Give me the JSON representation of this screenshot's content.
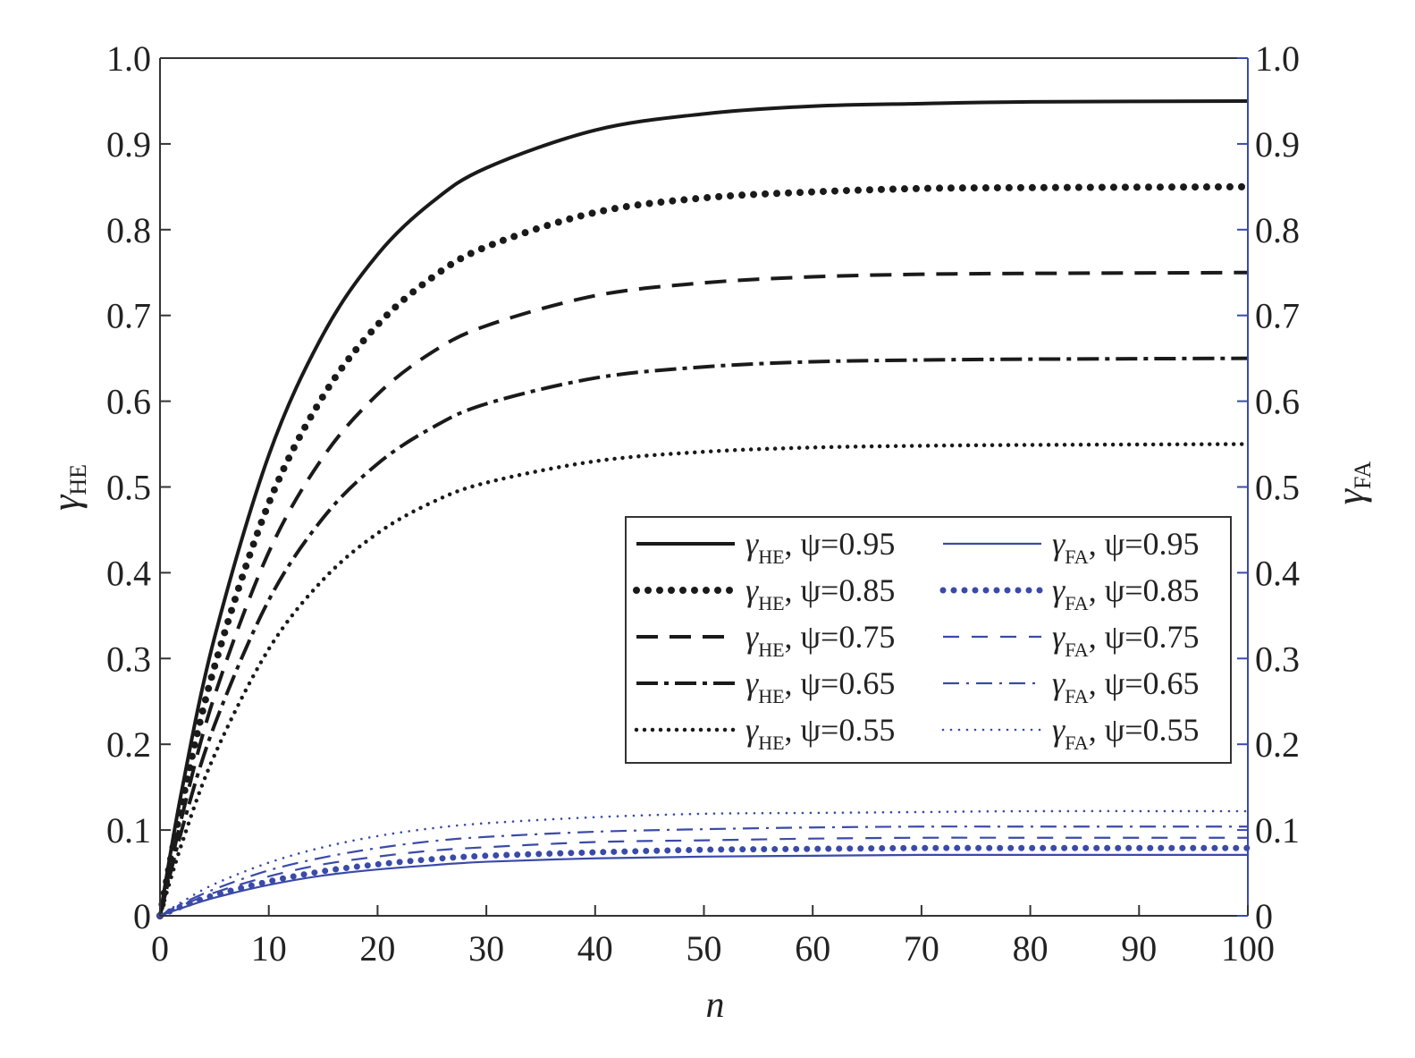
{
  "chart_data": {
    "type": "line",
    "title": "",
    "xlabel": "n",
    "ylabel": {
      "symbol": "γ",
      "sub": "HE"
    },
    "ylabel_right": {
      "symbol": "γ",
      "sub": "FA"
    },
    "xlim": [
      0,
      100
    ],
    "ylim": [
      0,
      1.0
    ],
    "ylim_right": [
      0,
      1.0
    ],
    "grid": false,
    "legend_placement": "center-right",
    "x_ticks": [
      "0",
      "10",
      "20",
      "30",
      "40",
      "50",
      "60",
      "70",
      "80",
      "90",
      "100"
    ],
    "y_ticks": [
      "0",
      "0.1",
      "0.2",
      "0.3",
      "0.4",
      "0.5",
      "0.6",
      "0.7",
      "0.8",
      "0.9",
      "1.0"
    ],
    "y_ticks_right": [
      "0",
      "0.1",
      "0.2",
      "0.3",
      "0.4",
      "0.5",
      "0.6",
      "0.7",
      "0.8",
      "0.9",
      "1.0"
    ],
    "colors": {
      "HE": "#1a1a1a",
      "FA": "#3a4aa8"
    },
    "x": [
      0,
      2,
      5,
      10,
      15,
      20,
      25,
      30,
      40,
      50,
      60,
      70,
      80,
      100
    ],
    "series": [
      {
        "sym": "γ",
        "sub": "HE",
        "param": ", ψ=0.95",
        "axis": "left",
        "style": "solid",
        "values": [
          0,
          0.146,
          0.324,
          0.537,
          0.678,
          0.771,
          0.832,
          0.872,
          0.916,
          0.935,
          0.944,
          0.947,
          0.949,
          0.95
        ]
      },
      {
        "sym": "γ",
        "sub": "HE",
        "param": ", ψ=0.85",
        "axis": "left",
        "style": "bold-dots",
        "values": [
          0,
          0.13,
          0.29,
          0.481,
          0.606,
          0.689,
          0.744,
          0.78,
          0.82,
          0.837,
          0.844,
          0.848,
          0.849,
          0.85
        ]
      },
      {
        "sym": "γ",
        "sub": "HE",
        "param": ", ψ=0.75",
        "axis": "left",
        "style": "dashed",
        "values": [
          0,
          0.115,
          0.256,
          0.424,
          0.535,
          0.608,
          0.657,
          0.688,
          0.723,
          0.738,
          0.745,
          0.748,
          0.749,
          0.75
        ]
      },
      {
        "sym": "γ",
        "sub": "HE",
        "param": ", ψ=0.65",
        "axis": "left",
        "style": "dash-dot",
        "values": [
          0,
          0.1,
          0.222,
          0.368,
          0.464,
          0.527,
          0.569,
          0.597,
          0.627,
          0.64,
          0.646,
          0.648,
          0.649,
          0.65
        ]
      },
      {
        "sym": "γ",
        "sub": "HE",
        "param": ", ψ=0.55",
        "axis": "left",
        "style": "dotted",
        "values": [
          0,
          0.084,
          0.187,
          0.311,
          0.392,
          0.446,
          0.482,
          0.505,
          0.53,
          0.541,
          0.546,
          0.548,
          0.549,
          0.55
        ]
      },
      {
        "sym": "γ",
        "sub": "FA",
        "param": ", ψ=0.95",
        "axis": "right",
        "style": "solid",
        "values": [
          0,
          0.009,
          0.021,
          0.036,
          0.047,
          0.054,
          0.059,
          0.063,
          0.067,
          0.069,
          0.07,
          0.071,
          0.071,
          0.071
        ]
      },
      {
        "sym": "γ",
        "sub": "FA",
        "param": ", ψ=0.85",
        "axis": "right",
        "style": "bold-dots",
        "values": [
          0,
          0.011,
          0.024,
          0.04,
          0.052,
          0.06,
          0.066,
          0.07,
          0.074,
          0.077,
          0.078,
          0.079,
          0.079,
          0.079
        ]
      },
      {
        "sym": "γ",
        "sub": "FA",
        "param": ", ψ=0.75",
        "axis": "right",
        "style": "dashed",
        "values": [
          0,
          0.012,
          0.027,
          0.046,
          0.06,
          0.069,
          0.076,
          0.08,
          0.086,
          0.088,
          0.09,
          0.091,
          0.091,
          0.091
        ]
      },
      {
        "sym": "γ",
        "sub": "FA",
        "param": ", ψ=0.65",
        "axis": "right",
        "style": "dash-dot",
        "values": [
          0,
          0.014,
          0.031,
          0.053,
          0.068,
          0.079,
          0.087,
          0.092,
          0.098,
          0.101,
          0.103,
          0.104,
          0.104,
          0.104
        ]
      },
      {
        "sym": "γ",
        "sub": "FA",
        "param": ", ψ=0.55",
        "axis": "right",
        "style": "dotted",
        "values": [
          0,
          0.016,
          0.037,
          0.062,
          0.08,
          0.093,
          0.102,
          0.108,
          0.115,
          0.119,
          0.12,
          0.121,
          0.122,
          0.122
        ]
      }
    ]
  }
}
